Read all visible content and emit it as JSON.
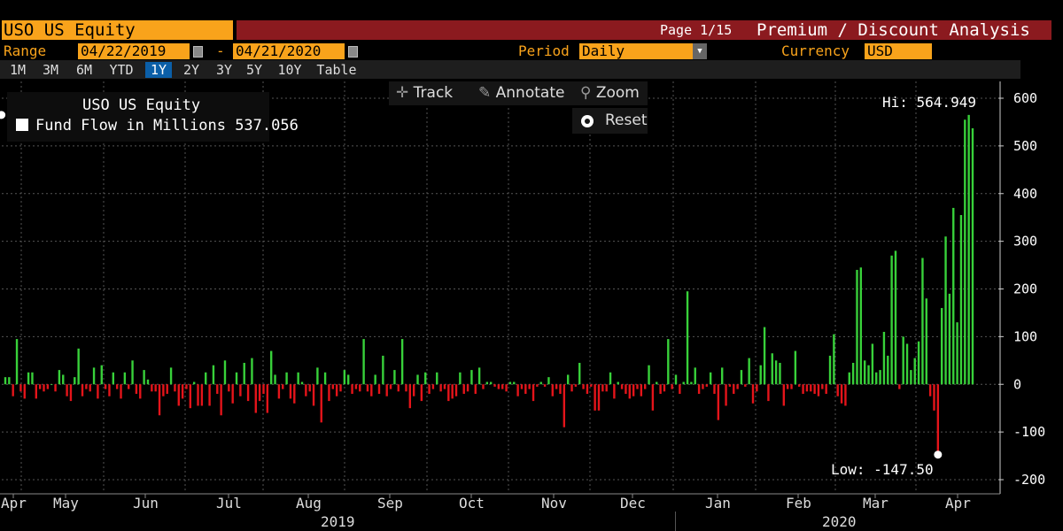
{
  "header": {
    "ticker": "USO US Equity",
    "page": "Page 1/15",
    "title": "Premium / Discount Analysis"
  },
  "controls": {
    "range_label": "Range",
    "start_date": "04/22/2019",
    "dash": "-",
    "end_date": "04/21/2020",
    "period_label": "Period",
    "period_value": "Daily",
    "currency_label": "Currency",
    "currency_value": "USD"
  },
  "range_buttons": [
    "1M",
    "3M",
    "6M",
    "YTD",
    "1Y",
    "2Y",
    "3Y",
    "5Y",
    "10Y",
    "Table"
  ],
  "active_range": "1Y",
  "toolbar": {
    "track": "Track",
    "annotate": "Annotate",
    "zoom": "Zoom",
    "reset": "Reset"
  },
  "legend": {
    "security": "USO US Equity",
    "series_label": "Fund Flow in Millions",
    "series_value": "537.056"
  },
  "annotations": {
    "hi": "Hi: 564.949",
    "low": "Low: -147.50"
  },
  "colors": {
    "positive": "#38d13a",
    "negative": "#e5141a",
    "accent": "#f9a31b",
    "title_bar": "#8b1a1f"
  },
  "chart_data": {
    "type": "bar",
    "series": [
      {
        "name": "Fund Flow in Millions"
      }
    ],
    "ylim": [
      -200,
      600
    ],
    "yticks": [
      -200,
      -100,
      0,
      100,
      200,
      300,
      400,
      500,
      600
    ],
    "ytick_labels": [
      "-200",
      "-100",
      "0",
      "100",
      "200",
      "300",
      "400",
      "500",
      "600"
    ],
    "month_labels": [
      "Apr",
      "May",
      "Jun",
      "Jul",
      "Aug",
      "Sep",
      "Oct",
      "Nov",
      "Dec",
      "Jan",
      "Feb",
      "Mar",
      "Apr"
    ],
    "year_labels": [
      "2019",
      "2020"
    ],
    "grid": true,
    "legend_position": "top-left",
    "hi": 564.949,
    "low": -147.5,
    "last": 537.056,
    "values": [
      15,
      15,
      -25,
      95,
      -15,
      -30,
      25,
      25,
      -30,
      -10,
      -15,
      -10,
      0,
      -15,
      30,
      20,
      -25,
      -35,
      15,
      75,
      -25,
      -10,
      -15,
      35,
      -30,
      40,
      -10,
      -25,
      25,
      -10,
      -30,
      25,
      -10,
      50,
      -20,
      -30,
      30,
      10,
      -15,
      -15,
      -65,
      -25,
      -20,
      35,
      -15,
      -45,
      -30,
      -10,
      -50,
      5,
      -45,
      -45,
      25,
      -45,
      40,
      -20,
      -65,
      50,
      -15,
      -40,
      25,
      -25,
      45,
      -35,
      55,
      -60,
      -35,
      -20,
      -60,
      70,
      20,
      -30,
      -10,
      25,
      -30,
      -40,
      25,
      5,
      -25,
      -15,
      -45,
      35,
      -80,
      25,
      -35,
      -10,
      -25,
      -15,
      30,
      20,
      -20,
      -10,
      -15,
      95,
      -15,
      -25,
      20,
      -20,
      60,
      -25,
      -10,
      30,
      -15,
      95,
      -15,
      -50,
      -25,
      20,
      -35,
      25,
      -20,
      -10,
      25,
      -15,
      -10,
      -35,
      -30,
      -25,
      25,
      -20,
      -15,
      30,
      -20,
      35,
      -10,
      5,
      5,
      -5,
      -10,
      -10,
      -15,
      5,
      5,
      -25,
      -10,
      -20,
      -10,
      -35,
      -5,
      5,
      -5,
      15,
      -25,
      -10,
      -20,
      -90,
      20,
      -15,
      -5,
      45,
      -10,
      -20,
      -5,
      -55,
      -55,
      -15,
      -15,
      25,
      -30,
      5,
      -10,
      -20,
      -30,
      -25,
      -10,
      -25,
      -10,
      40,
      -55,
      5,
      -20,
      -15,
      95,
      -10,
      20,
      -20,
      5,
      195,
      5,
      35,
      -20,
      -10,
      -5,
      25,
      -20,
      -75,
      35,
      -45,
      -5,
      -20,
      -10,
      30,
      -5,
      55,
      -40,
      -15,
      40,
      120,
      -35,
      65,
      50,
      45,
      -45,
      -10,
      -10,
      70,
      -5,
      -20,
      -15,
      -15,
      -20,
      -25,
      -10,
      -20,
      60,
      105,
      -25,
      -40,
      -45,
      25,
      45,
      240,
      245,
      50,
      40,
      85,
      25,
      30,
      110,
      60,
      270,
      280,
      -10,
      100,
      85,
      30,
      55,
      90,
      265,
      180,
      -25,
      -55,
      -147.5,
      160,
      310,
      190,
      370,
      130,
      355,
      555,
      565,
      537.056
    ]
  }
}
